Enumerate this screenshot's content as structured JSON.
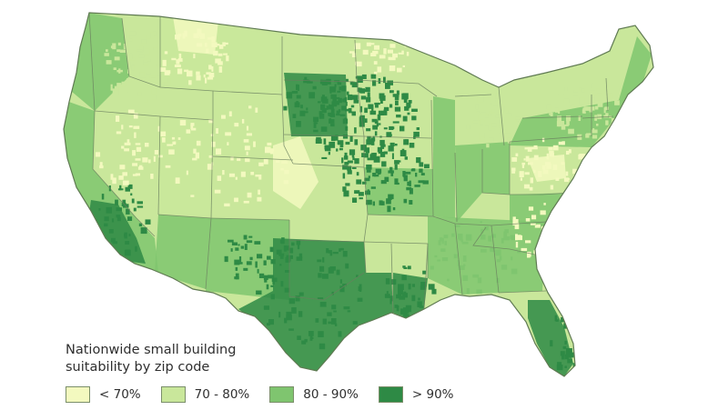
{
  "map": {
    "legend": {
      "title_line1": "Nationwide small building",
      "title_line2": "suitability by zip code",
      "items": [
        {
          "label": "< 70%",
          "color": "#f3f9bf"
        },
        {
          "label": "70 - 80%",
          "color": "#c9e79b"
        },
        {
          "label": "80 - 90%",
          "color": "#7fc56f"
        },
        {
          "label": "> 90%",
          "color": "#2e8a45"
        }
      ]
    },
    "colors": {
      "border": "#ffffff",
      "state_line": "#6a7f5f",
      "coast": "#5f7a52"
    }
  }
}
